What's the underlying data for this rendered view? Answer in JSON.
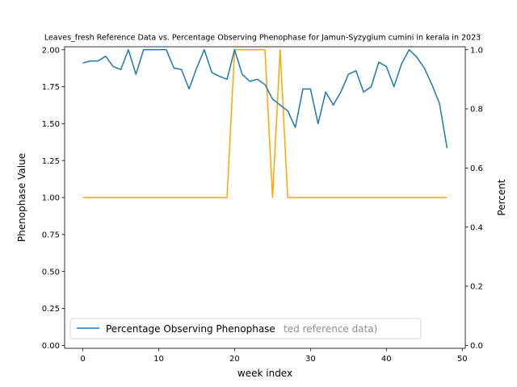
{
  "chart_data": {
    "type": "line",
    "title": "Leaves_fresh Reference Data vs. Percentage Observing Phenophase for Jamun-Syzygium cumini in kerala in 2023",
    "xlabel": "week index",
    "ylabel_left": "Phenophase Value",
    "ylabel_right": "Percent",
    "xlim": [
      -2.4,
      50.4
    ],
    "ylim_left": [
      -0.02,
      2.02
    ],
    "ylim_right": [
      -0.01,
      1.01
    ],
    "x_ticks": [
      0,
      10,
      20,
      30,
      40,
      50
    ],
    "y_ticks_left": [
      "0.00",
      "0.25",
      "0.50",
      "0.75",
      "1.00",
      "1.25",
      "1.50",
      "1.75",
      "2.00"
    ],
    "y_ticks_right": [
      "0.0",
      "0.2",
      "0.4",
      "0.6",
      "0.8",
      "1.0"
    ],
    "series": [
      {
        "name": "",
        "axis": "left",
        "color": "#ffa500",
        "x": [
          0,
          1,
          2,
          3,
          4,
          5,
          6,
          7,
          8,
          9,
          10,
          11,
          12,
          13,
          14,
          15,
          16,
          17,
          18,
          19,
          20,
          21,
          22,
          23,
          24,
          25,
          26,
          27,
          28,
          29,
          30,
          31,
          32,
          33,
          34,
          35,
          36,
          37,
          38,
          39,
          40,
          41,
          42,
          43,
          44,
          45,
          46,
          47,
          48
        ],
        "values": [
          1,
          1,
          1,
          1,
          1,
          1,
          1,
          1,
          1,
          1,
          1,
          1,
          1,
          1,
          1,
          1,
          1,
          1,
          1,
          1,
          2,
          2,
          2,
          2,
          2,
          1,
          2,
          1,
          1,
          1,
          1,
          1,
          1,
          1,
          1,
          1,
          1,
          1,
          1,
          1,
          1,
          1,
          1,
          1,
          1,
          1,
          1,
          1,
          1
        ]
      },
      {
        "name": "Percentage Observing Phenophase",
        "axis": "right",
        "color": "#1f77b4",
        "x": [
          0,
          1,
          2,
          3,
          4,
          5,
          6,
          7,
          8,
          9,
          10,
          11,
          12,
          13,
          14,
          15,
          16,
          17,
          18,
          19,
          20,
          21,
          22,
          23,
          24,
          25,
          26,
          27,
          28,
          29,
          30,
          31,
          32,
          33,
          34,
          35,
          36,
          37,
          38,
          39,
          40,
          41,
          42,
          43,
          44,
          45,
          46,
          47,
          48
        ],
        "values": [
          0.955,
          0.962,
          0.962,
          0.978,
          0.943,
          0.933,
          1.0,
          0.917,
          1.0,
          1.0,
          1.0,
          1.0,
          0.938,
          0.933,
          0.867,
          0.938,
          1.0,
          0.923,
          0.91,
          0.9,
          1.0,
          0.917,
          0.893,
          0.9,
          0.882,
          0.833,
          0.813,
          0.793,
          0.737,
          0.867,
          0.867,
          0.75,
          0.857,
          0.813,
          0.857,
          0.917,
          0.929,
          0.857,
          0.875,
          0.958,
          0.943,
          0.875,
          0.952,
          1.0,
          0.975,
          0.938,
          0.882,
          0.818,
          0.667
        ]
      }
    ],
    "legend": {
      "position": "lower-left",
      "text": "Percentage Observing Phenophase",
      "hidden_text": "ted reference data)"
    }
  }
}
